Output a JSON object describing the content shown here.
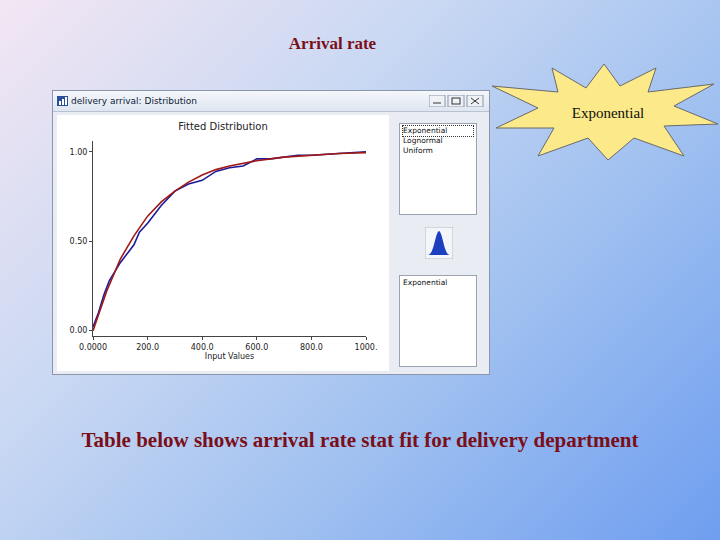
{
  "slide": {
    "title": "Arrival rate",
    "callout": "Exponential",
    "window_title": "delivery arrival: Distribution",
    "distribution_list": [
      "Exponential",
      "Lognormal",
      "Uniform"
    ],
    "selected_list": [
      "Exponential"
    ],
    "caption": "Table below shows arrival rate stat fit for delivery department"
  },
  "chart_data": {
    "type": "line",
    "title": "Fitted Distribution",
    "x_label": "Input Values",
    "series": [
      {
        "color": "#1c1c9a",
        "line_style": "solid",
        "x": [
          0,
          20,
          40,
          60,
          80,
          100,
          130,
          150,
          170,
          200,
          250,
          300,
          350,
          400,
          450,
          500,
          550,
          600,
          650,
          700,
          750,
          800,
          900,
          1000
        ],
        "values": [
          0.02,
          0.1,
          0.2,
          0.28,
          0.33,
          0.38,
          0.44,
          0.48,
          0.55,
          0.6,
          0.7,
          0.78,
          0.82,
          0.84,
          0.89,
          0.91,
          0.92,
          0.96,
          0.96,
          0.97,
          0.98,
          0.98,
          0.99,
          1.0
        ]
      },
      {
        "color": "#a01818",
        "line_style": "solid",
        "x": [
          0,
          50,
          100,
          150,
          200,
          250,
          300,
          350,
          400,
          450,
          500,
          600,
          700,
          800,
          900,
          1000
        ],
        "values": [
          0,
          0.22,
          0.4,
          0.53,
          0.64,
          0.72,
          0.78,
          0.83,
          0.87,
          0.9,
          0.92,
          0.95,
          0.97,
          0.98,
          0.99,
          0.995
        ]
      }
    ],
    "xlim": [
      0,
      1000
    ],
    "xticks": [
      {
        "value": 0,
        "label": "0.0000"
      },
      {
        "value": 200,
        "label": "200.0"
      },
      {
        "value": 400,
        "label": "400.0"
      },
      {
        "value": 600,
        "label": "600.0"
      },
      {
        "value": 800,
        "label": "800.0"
      },
      {
        "value": 1000,
        "label": "1000."
      }
    ],
    "ylim": [
      -0.03,
      1.06
    ],
    "yticks": [
      {
        "value": 0,
        "label": "0.00"
      },
      {
        "value": 0.5,
        "label": "0.50"
      },
      {
        "value": 1,
        "label": "1.00"
      }
    ],
    "grid": false
  }
}
